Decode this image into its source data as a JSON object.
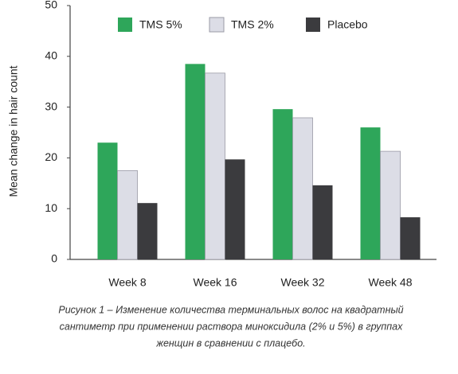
{
  "chart_data": {
    "type": "bar",
    "y_label": "Mean change in hair count",
    "categories": [
      "Week 8",
      "Week 16",
      "Week 32",
      "Week 48"
    ],
    "series": [
      {
        "name": "TMS 5%",
        "color": "#2ea65a",
        "values": [
          23,
          38.5,
          29.6,
          26
        ]
      },
      {
        "name": "TMS 2%",
        "color": "#dcdde6",
        "values": [
          17.5,
          36.7,
          27.9,
          21.3
        ]
      },
      {
        "name": "Placebo",
        "color": "#3b3b3e",
        "values": [
          11.1,
          19.7,
          14.6,
          8.3
        ]
      }
    ],
    "ylim": [
      0,
      50
    ],
    "yticks": [
      0,
      10,
      20,
      30,
      40,
      50
    ],
    "grid": false,
    "caption": [
      "Рисунок 1 – Изменение количества терминальных волос на квадратный",
      "сантиметр при применении раствора миноксидила (2% и 5%) в группах",
      "женщин в сравнении с плацебо."
    ]
  }
}
